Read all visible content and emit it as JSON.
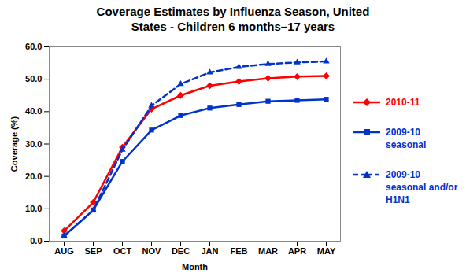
{
  "chart_data": {
    "type": "line",
    "title": "Coverage Estimates by Influenza Season, United States - Children 6 months–17 years",
    "x_label": "Month",
    "y_label": "Coverage (%)",
    "categories": [
      "AUG",
      "SEP",
      "OCT",
      "NOV",
      "DEC",
      "JAN",
      "FEB",
      "MAR",
      "APR",
      "MAY"
    ],
    "series": [
      {
        "name": "2010-11",
        "color": "#ff0000",
        "marker": "diamond",
        "line_style": "solid",
        "values": [
          3.2,
          12.0,
          29.0,
          40.8,
          45.0,
          48.0,
          49.3,
          50.3,
          50.8,
          51.0
        ]
      },
      {
        "name": "2009-10 seasonal",
        "color": "#0033cc",
        "marker": "square",
        "line_style": "solid",
        "values": [
          1.6,
          9.6,
          24.6,
          34.3,
          38.8,
          41.1,
          42.2,
          43.2,
          43.5,
          43.8
        ]
      },
      {
        "name": "2009-10 seasonal and/or H1N1",
        "color": "#0033cc",
        "marker": "triangle",
        "line_style": "dashed",
        "values": [
          1.6,
          9.6,
          28.2,
          41.8,
          48.5,
          52.1,
          53.8,
          54.7,
          55.2,
          55.5
        ]
      }
    ],
    "ylim": [
      0,
      60
    ],
    "yticks": [
      {
        "value": 0,
        "label": "0.0"
      },
      {
        "value": 10,
        "label": "10.0"
      },
      {
        "value": 20,
        "label": "20.0"
      },
      {
        "value": 30,
        "label": "30.0"
      },
      {
        "value": 40,
        "label": "40.0"
      },
      {
        "value": 50,
        "label": "50.0"
      },
      {
        "value": 60,
        "label": "60.0"
      }
    ],
    "grid": false,
    "legend": "right"
  }
}
